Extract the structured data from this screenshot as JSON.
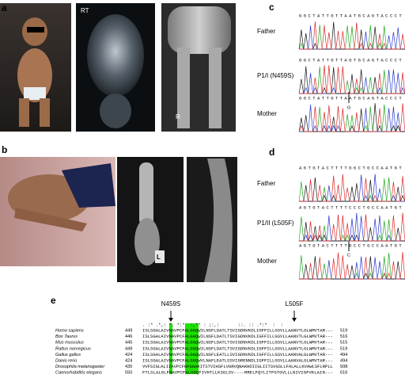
{
  "panel_a": {
    "label": "a",
    "image_labels": [
      "RT",
      "R"
    ]
  },
  "panel_b": {
    "label": "b",
    "image_labels": [
      "L"
    ]
  },
  "panel_c": {
    "label": "c",
    "traces": [
      {
        "sequence": "GGCTATTGTTAATGCAGTACCCT",
        "name": "Father"
      },
      {
        "sequence": "GGCTATTGTTAGTGCAGTACCCT",
        "name": "P1/I (N459S)",
        "marker": "G"
      },
      {
        "sequence": "GGCTATTGTTAATGCAGTACCCT",
        "name": "Mother"
      }
    ]
  },
  "panel_d": {
    "label": "d",
    "traces": [
      {
        "sequence": "AGTGTACTTTTGGCTGCCAATGT",
        "name": "Father"
      },
      {
        "sequence": "AGTGTACTTTTCCCTGCCAATGT",
        "name": "P1/II (L505F)",
        "marker": "C"
      },
      {
        "sequence": "AGTGTACTTTTGCCTGCCAATGT",
        "name": "Mother"
      }
    ]
  },
  "panel_e": {
    "label": "e",
    "mutations": [
      "N459S",
      "L505F"
    ],
    "conservation": ". :* .*,: *. *:*  :,** : ;:,:       ::. :: .*:*  :  :           ",
    "rows": [
      {
        "species": "Homo sapiens",
        "start": "449",
        "sequence": "ISLSGALAIVNAVPCFALGGQWILNSFLDATLTSVIGDNVKDLIGFFILLGSVLLAANVTLGLWMVTAR---",
        "end": "519"
      },
      {
        "species": "Bos Taurus",
        "start": "446",
        "sequence": "ISLSGALAIVNAVPCFALGGQWILNSFLDATLTSVIGDNVKDLIGFFILLGSVLLAANVTLGLWMVTAR---",
        "end": "516"
      },
      {
        "species": "Mus musculus",
        "start": "445",
        "sequence": "ISLSGALAIVNAVPCFALGGQWILNSFLDATLTSVIGDNVKDLIGFFILLGSVLLAANVTLGLWMVTAR---",
        "end": "515"
      },
      {
        "species": "Rattus norvegicus",
        "start": "449",
        "sequence": "ISLSGALAIVNAVPCFALGGQWILNSFLDATLTSVIGDNVKDLIGFFILLGSVLLAANVTLGLWMVTAR---",
        "end": "519"
      },
      {
        "species": "Gallus gallus",
        "start": "424",
        "sequence": "ISLSGALAIVNAVPCFALGGQWILNSFLEATLLSVIGDNVKDLIGFFILLGSVLLAANVALGLWMVTAR---",
        "end": "494"
      },
      {
        "species": "Danio rerio",
        "start": "424",
        "sequence": "ISLSGALAIVNAVPCFALGGQWVLNAFLEATLSSVIGRENNDLIGFFILLGSVLLAANVALGLWMVTAR---",
        "end": "494"
      },
      {
        "species": "Drosophila melanogaster",
        "start": "435",
        "sequence": "VVFSIGLALIIAVPCFGFGGARITSTVIHSFLVGRVQNAKHDIIGLIITSVGSLLFALALLKVAWLSFLRPLL",
        "end": "508"
      },
      {
        "species": "Caenorhabditis elegans",
        "start": "550",
        "sequence": "FTLSLALGLFNAVPCFALGGQFIVHTLLKSGLSV----RRELFQYLITFGTGVLLLNIVIGFVKLAIN---",
        "end": "616"
      }
    ]
  }
}
